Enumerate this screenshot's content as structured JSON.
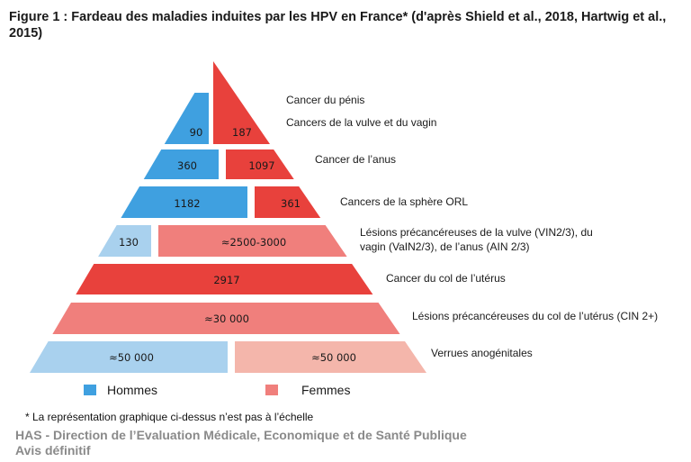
{
  "title": "Figure 1 : Fardeau des maladies induites par les HPV en France* (d'après Shield et al., 2018, Hartwig et al., 2015)",
  "colors": {
    "hommes": "#3fa0e0",
    "hommes_light": "#a9d1ee",
    "femmes_dark": "#e8413c",
    "femmes_medium": "#f07f7c",
    "femmes_light": "#f4b6ab"
  },
  "chart_data": {
    "type": "pyramid",
    "title": "Fardeau des maladies induites par les HPV en France",
    "legend": [
      {
        "label": "Hommes",
        "color": "#3fa0e0"
      },
      {
        "label": "Femmes",
        "color": "#f07f7c"
      }
    ],
    "rows": [
      {
        "label": "Cancer du pénis",
        "hommes": "",
        "femmes": ""
      },
      {
        "label": "Cancers de la vulve et du vagin",
        "hommes": "90",
        "femmes": "187"
      },
      {
        "label": "Cancer de l’anus",
        "hommes": "360",
        "femmes": "1097"
      },
      {
        "label": "Cancers de la sphère ORL",
        "hommes": "1182",
        "femmes": "361"
      },
      {
        "label": [
          "Lésions précancéreuses de la vulve (VIN2/3), du",
          "vagin (VaIN2/3), de l’anus (AIN 2/3)"
        ],
        "hommes": "130",
        "femmes": "≈2500-3000"
      },
      {
        "label": "Cancer du col de l’utérus",
        "hommes": "",
        "femmes": "2917"
      },
      {
        "label": "Lésions précancéreuses du col de l’utérus (CIN 2+)",
        "hommes": "",
        "femmes": "≈30 000"
      },
      {
        "label": "Verrues anogénitales",
        "hommes": "≈50 000",
        "femmes": "≈50 000"
      }
    ]
  },
  "footnote": "* La représentation graphique ci-dessus n’est pas à l’échelle",
  "source": {
    "line1": "HAS - Direction de l’Evaluation Médicale, Economique et de Santé Publique",
    "line2": "Avis définitif"
  }
}
